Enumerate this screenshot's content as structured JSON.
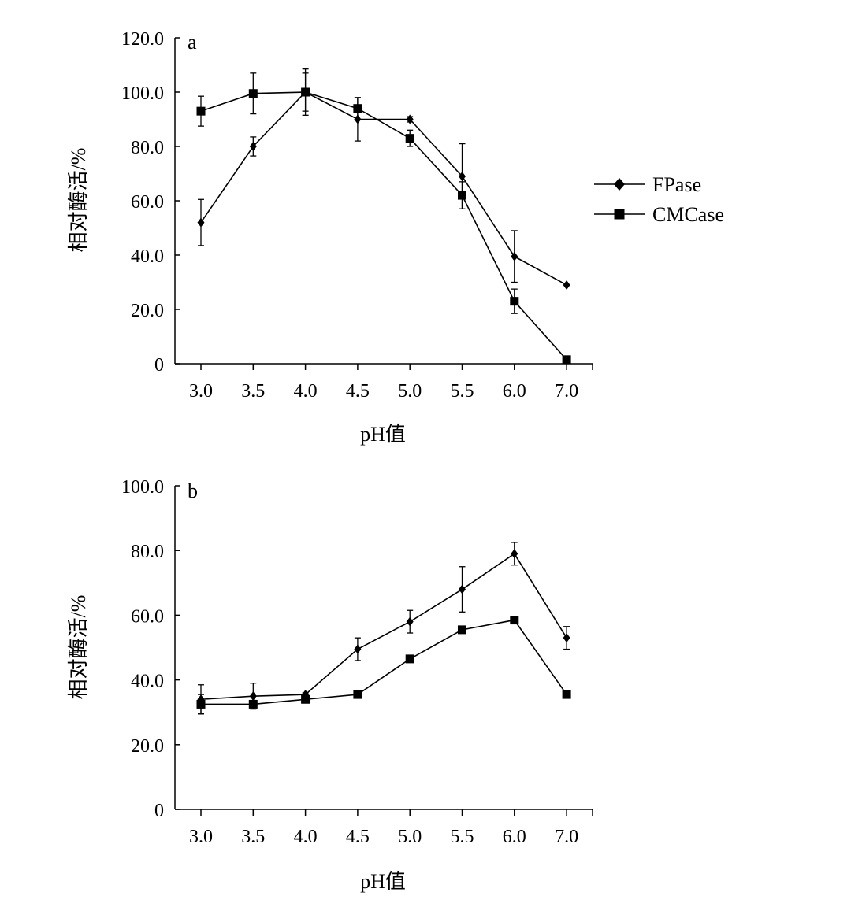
{
  "chart_data": [
    {
      "type": "line",
      "panel_label": "a",
      "categories": [
        "3.0",
        "3.5",
        "4.0",
        "4.5",
        "5.0",
        "5.5",
        "6.0",
        "7.0"
      ],
      "xlabel": "pH值",
      "ylabel": "相对酶活/%",
      "ylim": [
        0,
        120
      ],
      "yticks": [
        "0",
        "20.0",
        "40.0",
        "60.0",
        "80.0",
        "100.0",
        "120.0"
      ],
      "series": [
        {
          "name": "FPase",
          "marker": "diamond",
          "values": [
            52.0,
            80.0,
            100.0,
            90.0,
            90.0,
            69.0,
            39.5,
            29.0
          ],
          "errors": [
            8.5,
            3.5,
            7.0,
            8.0,
            1.0,
            12.0,
            9.5,
            0
          ]
        },
        {
          "name": "CMCase",
          "marker": "square",
          "values": [
            93.0,
            99.5,
            100.0,
            94.0,
            83.0,
            62.0,
            23.0,
            1.5
          ],
          "errors": [
            5.5,
            7.5,
            8.5,
            4.0,
            3.0,
            5.0,
            4.5,
            0
          ]
        }
      ],
      "legend": [
        "FPase",
        "CMCase"
      ]
    },
    {
      "type": "line",
      "panel_label": "b",
      "categories": [
        "3.0",
        "3.5",
        "4.0",
        "4.5",
        "5.0",
        "5.5",
        "6.0",
        "7.0"
      ],
      "xlabel": "pH值",
      "ylabel": "相对酶活/%",
      "ylim": [
        0,
        100
      ],
      "yticks": [
        "0",
        "20.0",
        "40.0",
        "60.0",
        "80.0",
        "100.0"
      ],
      "series": [
        {
          "name": "FPase",
          "marker": "diamond",
          "values": [
            34.0,
            35.0,
            35.5,
            49.5,
            58.0,
            68.0,
            79.0,
            53.0
          ],
          "errors": [
            4.5,
            4.0,
            0.5,
            3.5,
            3.5,
            7.0,
            3.5,
            3.5
          ]
        },
        {
          "name": "CMCase",
          "marker": "square",
          "values": [
            32.5,
            32.5,
            34.0,
            35.5,
            46.5,
            55.5,
            58.5,
            35.5
          ],
          "errors": [
            3.0,
            0.5,
            0.5,
            0,
            0.5,
            0.5,
            0.5,
            0
          ]
        }
      ]
    }
  ]
}
